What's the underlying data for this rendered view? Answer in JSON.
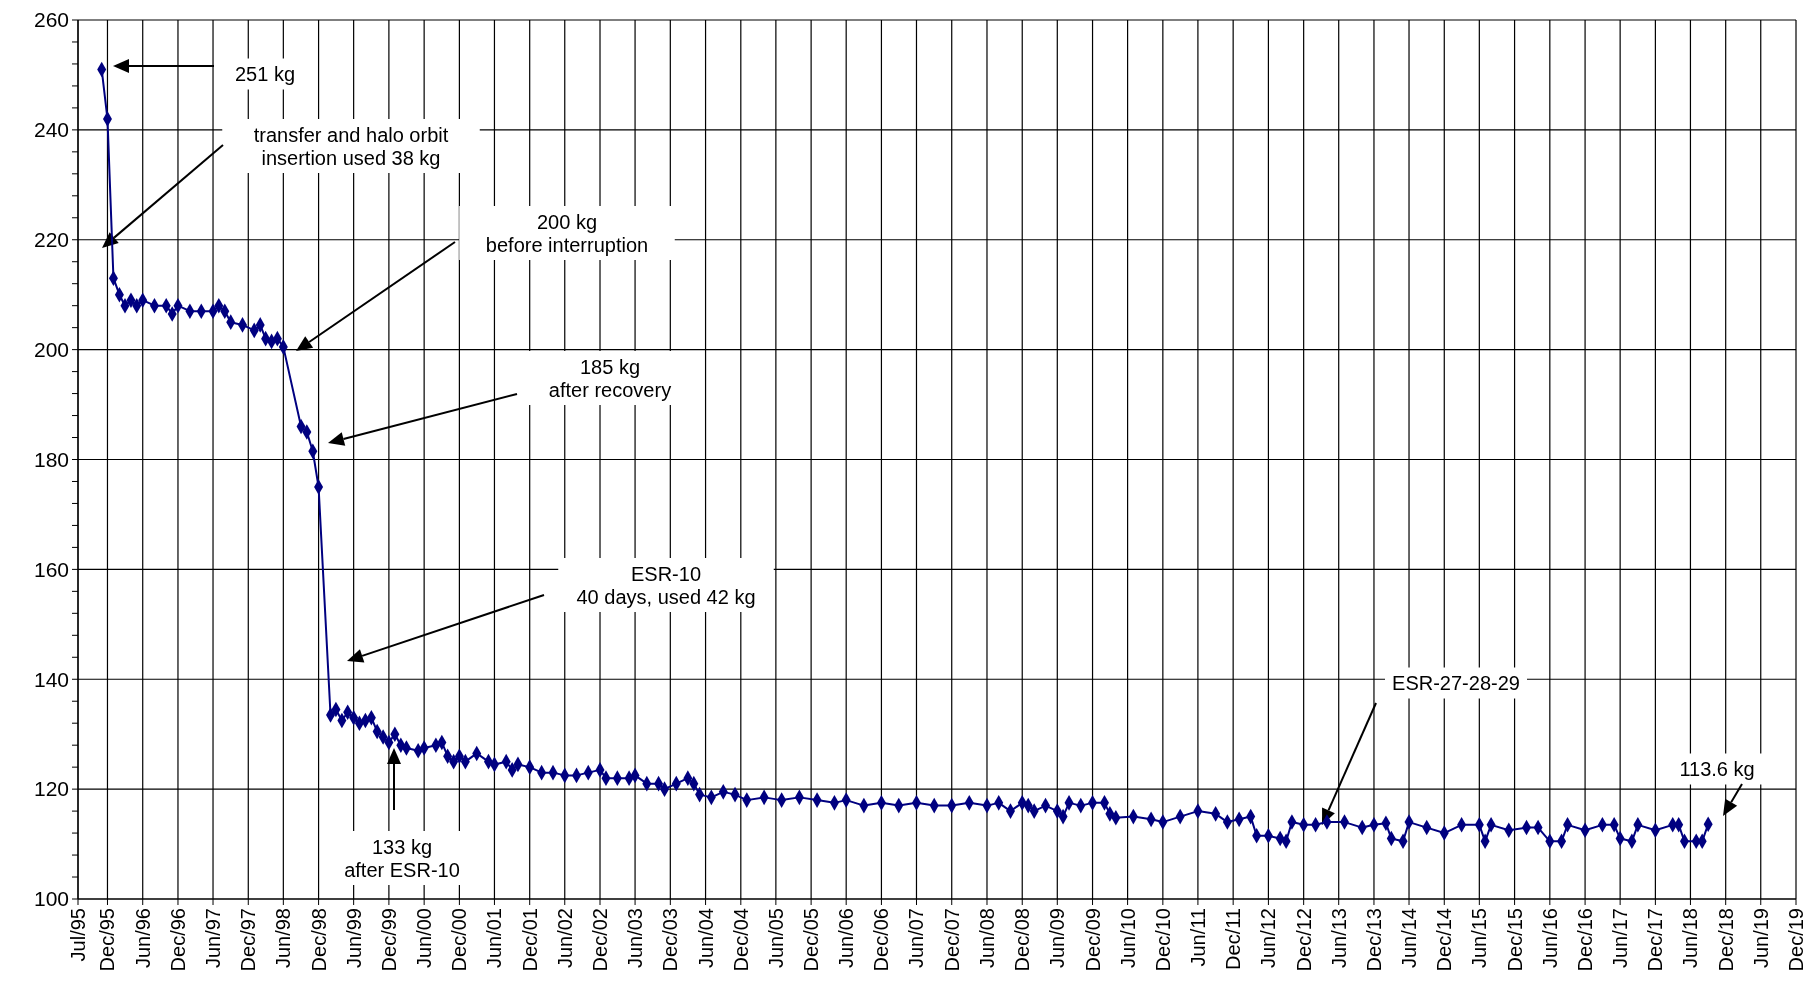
{
  "chart_data": {
    "type": "line",
    "x": [
      "1995-11",
      "1995-12",
      "1996-01",
      "1996-02",
      "1996-03",
      "1996-04",
      "1996-05",
      "1996-06",
      "1996-08",
      "1996-10",
      "1996-11",
      "1996-12",
      "1997-02",
      "1997-04",
      "1997-06",
      "1997-07",
      "1997-08",
      "1997-09",
      "1997-11",
      "1998-01",
      "1998-02",
      "1998-03",
      "1998-04",
      "1998-05",
      "1998-06",
      "1998-09",
      "1998-10",
      "1998-11",
      "1998-12",
      "1999-02",
      "1999-03",
      "1999-04",
      "1999-05",
      "1999-06",
      "1999-07",
      "1999-08",
      "1999-09",
      "1999-10",
      "1999-11",
      "1999-12",
      "2000-01",
      "2000-02",
      "2000-03",
      "2000-05",
      "2000-06",
      "2000-08",
      "2000-09",
      "2000-10",
      "2000-11",
      "2000-12",
      "2001-01",
      "2001-03",
      "2001-05",
      "2001-06",
      "2001-08",
      "2001-09",
      "2001-10",
      "2001-12",
      "2002-02",
      "2002-04",
      "2002-06",
      "2002-08",
      "2002-10",
      "2002-12",
      "2003-01",
      "2003-03",
      "2003-05",
      "2003-06",
      "2003-08",
      "2003-10",
      "2003-11",
      "2004-01",
      "2004-03",
      "2004-04",
      "2004-05",
      "2004-07",
      "2004-09",
      "2004-11",
      "2005-01",
      "2005-04",
      "2005-07",
      "2005-10",
      "2006-01",
      "2006-04",
      "2006-06",
      "2006-09",
      "2006-12",
      "2007-03",
      "2007-06",
      "2007-09",
      "2007-12",
      "2008-03",
      "2008-06",
      "2008-08",
      "2008-10",
      "2008-12",
      "2009-01",
      "2009-02",
      "2009-04",
      "2009-06",
      "2009-07",
      "2009-08",
      "2009-10",
      "2009-12",
      "2010-02",
      "2010-03",
      "2010-04",
      "2010-07",
      "2010-10",
      "2010-12",
      "2011-03",
      "2011-06",
      "2011-09",
      "2011-11",
      "2012-01",
      "2012-03",
      "2012-04",
      "2012-06",
      "2012-08",
      "2012-09",
      "2012-10",
      "2012-12",
      "2013-02",
      "2013-04",
      "2013-07",
      "2013-10",
      "2013-12",
      "2014-02",
      "2014-03",
      "2014-05",
      "2014-06",
      "2014-09",
      "2014-12",
      "2015-03",
      "2015-06",
      "2015-07",
      "2015-08",
      "2015-11",
      "2016-02",
      "2016-04",
      "2016-06",
      "2016-08",
      "2016-09",
      "2016-12",
      "2017-03",
      "2017-05",
      "2017-06",
      "2017-08",
      "2017-09",
      "2017-12",
      "2018-03",
      "2018-04",
      "2018-05",
      "2018-07",
      "2018-08",
      "2018-09"
    ],
    "series": [
      {
        "color": "#000080",
        "values": [
          251,
          242,
          213,
          210,
          208,
          209,
          208,
          209,
          208,
          208,
          206.5,
          208,
          207,
          207,
          207,
          208,
          207,
          205,
          204.5,
          203.5,
          204.5,
          202,
          201.5,
          202,
          200.5,
          186,
          185,
          181.5,
          175,
          133.5,
          134.5,
          132.5,
          134,
          133,
          132,
          132.5,
          133,
          130.5,
          129.5,
          128.5,
          130,
          128,
          127.5,
          127,
          127.5,
          128,
          128.5,
          126,
          125,
          126,
          125,
          126.5,
          125,
          124.5,
          125,
          123.5,
          124.5,
          124,
          123,
          123,
          122.5,
          122.5,
          123,
          123.5,
          122,
          122,
          122,
          122.5,
          121,
          121,
          120,
          121,
          122,
          121,
          119,
          118.5,
          119.5,
          119,
          118,
          118.5,
          118,
          118.5,
          118,
          117.5,
          118,
          117,
          117.5,
          117,
          117.5,
          117,
          117,
          117.5,
          117,
          117.5,
          116,
          117.5,
          117,
          116,
          117,
          116,
          115,
          117.5,
          117,
          117.5,
          117.5,
          115.5,
          114.8,
          115,
          114.5,
          114,
          115,
          116,
          115.5,
          114,
          114.5,
          115,
          111.5,
          111.5,
          111,
          110.5,
          114,
          113.5,
          113.5,
          114,
          114,
          113,
          113.5,
          113.8,
          111,
          110.5,
          114,
          113,
          112,
          113.5,
          113.5,
          110.5,
          113.5,
          112.5,
          113,
          113,
          110.5,
          110.5,
          113.5,
          112.5,
          113.5,
          113.5,
          111,
          110.5,
          113.5,
          112.5,
          113.5,
          113.5,
          110.5,
          110.5,
          110.5,
          113.6
        ]
      }
    ],
    "xlim": [
      "1995-07-01",
      "2019-12-01"
    ],
    "xticks": [
      {
        "value": "1995-07-01",
        "label": "Jul/95"
      },
      {
        "value": "1995-12-01",
        "label": "Dec/95"
      },
      {
        "value": "1996-06-01",
        "label": "Jun/96"
      },
      {
        "value": "1996-12-01",
        "label": "Dec/96"
      },
      {
        "value": "1997-06-01",
        "label": "Jun/97"
      },
      {
        "value": "1997-12-01",
        "label": "Dec/97"
      },
      {
        "value": "1998-06-01",
        "label": "Jun/98"
      },
      {
        "value": "1998-12-01",
        "label": "Dec/98"
      },
      {
        "value": "1999-06-01",
        "label": "Jun/99"
      },
      {
        "value": "1999-12-01",
        "label": "Dec/99"
      },
      {
        "value": "2000-06-01",
        "label": "Jun/00"
      },
      {
        "value": "2000-12-01",
        "label": "Dec/00"
      },
      {
        "value": "2001-06-01",
        "label": "Jun/01"
      },
      {
        "value": "2001-12-01",
        "label": "Dec/01"
      },
      {
        "value": "2002-06-01",
        "label": "Jun/02"
      },
      {
        "value": "2002-12-01",
        "label": "Dec/02"
      },
      {
        "value": "2003-06-01",
        "label": "Jun/03"
      },
      {
        "value": "2003-12-01",
        "label": "Dec/03"
      },
      {
        "value": "2004-06-01",
        "label": "Jun/04"
      },
      {
        "value": "2004-12-01",
        "label": "Dec/04"
      },
      {
        "value": "2005-06-01",
        "label": "Jun/05"
      },
      {
        "value": "2005-12-01",
        "label": "Dec/05"
      },
      {
        "value": "2006-06-01",
        "label": "Jun/06"
      },
      {
        "value": "2006-12-01",
        "label": "Dec/06"
      },
      {
        "value": "2007-06-01",
        "label": "Jun/07"
      },
      {
        "value": "2007-12-01",
        "label": "Dec/07"
      },
      {
        "value": "2008-06-01",
        "label": "Jun/08"
      },
      {
        "value": "2008-12-01",
        "label": "Dec/08"
      },
      {
        "value": "2009-06-01",
        "label": "Jun/09"
      },
      {
        "value": "2009-12-01",
        "label": "Dec/09"
      },
      {
        "value": "2010-06-01",
        "label": "Jun/10"
      },
      {
        "value": "2010-12-01",
        "label": "Dec/10"
      },
      {
        "value": "2011-06-01",
        "label": "Jun/11"
      },
      {
        "value": "2011-12-01",
        "label": "Dec/11"
      },
      {
        "value": "2012-06-01",
        "label": "Jun/12"
      },
      {
        "value": "2012-12-01",
        "label": "Dec/12"
      },
      {
        "value": "2013-06-01",
        "label": "Jun/13"
      },
      {
        "value": "2013-12-01",
        "label": "Dec/13"
      },
      {
        "value": "2014-06-01",
        "label": "Jun/14"
      },
      {
        "value": "2014-12-01",
        "label": "Dec/14"
      },
      {
        "value": "2015-06-01",
        "label": "Jun/15"
      },
      {
        "value": "2015-12-01",
        "label": "Dec/15"
      },
      {
        "value": "2016-06-01",
        "label": "Jun/16"
      },
      {
        "value": "2016-12-01",
        "label": "Dec/16"
      },
      {
        "value": "2017-06-01",
        "label": "Jun/17"
      },
      {
        "value": "2017-12-01",
        "label": "Dec/17"
      },
      {
        "value": "2018-06-01",
        "label": "Jun/18"
      },
      {
        "value": "2018-12-01",
        "label": "Dec/18"
      },
      {
        "value": "2019-06-01",
        "label": "Jun/19"
      },
      {
        "value": "2019-12-01",
        "label": "Dec/19"
      }
    ],
    "ylim": [
      100,
      260
    ],
    "yticks": [
      100,
      {
        "value": 104,
        "label": null
      },
      {
        "value": 108,
        "label": null
      },
      {
        "value": 112,
        "label": null
      },
      {
        "value": 116,
        "label": null
      },
      120,
      {
        "value": 124,
        "label": null
      },
      {
        "value": 128,
        "label": null
      },
      {
        "value": 132,
        "label": null
      },
      {
        "value": 136,
        "label": null
      },
      140,
      {
        "value": 144,
        "label": null
      },
      {
        "value": 148,
        "label": null
      },
      {
        "value": 152,
        "label": null
      },
      {
        "value": 156,
        "label": null
      },
      160,
      {
        "value": 164,
        "label": null
      },
      {
        "value": 168,
        "label": null
      },
      {
        "value": 172,
        "label": null
      },
      {
        "value": 176,
        "label": null
      },
      180,
      {
        "value": 184,
        "label": null
      },
      {
        "value": 188,
        "label": null
      },
      {
        "value": 192,
        "label": null
      },
      {
        "value": 196,
        "label": null
      },
      200,
      {
        "value": 204,
        "label": null
      },
      {
        "value": 208,
        "label": null
      },
      {
        "value": 212,
        "label": null
      },
      {
        "value": 216,
        "label": null
      },
      220,
      {
        "value": 224,
        "label": null
      },
      {
        "value": 228,
        "label": null
      },
      {
        "value": 232,
        "label": null
      },
      {
        "value": 236,
        "label": null
      },
      240,
      {
        "value": 244,
        "label": null
      },
      {
        "value": 248,
        "label": null
      },
      {
        "value": 252,
        "label": null
      },
      {
        "value": 256,
        "label": null
      },
      260
    ],
    "grid": true,
    "marker": "diamond",
    "line_style": "solid",
    "annotations": [
      "251 kg",
      "transfer and halo orbit\ninsertion used 38 kg",
      "200 kg\nbefore interruption",
      "185 kg\nafter recovery",
      "ESR-10\n40 days, used 42 kg",
      "133 kg\nafter ESR-10",
      "ESR-27-28-29",
      "113.6 kg"
    ]
  }
}
